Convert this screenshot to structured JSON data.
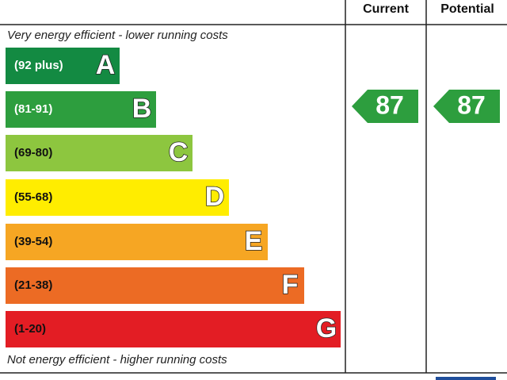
{
  "header": {
    "current": "Current",
    "potential": "Potential"
  },
  "top_note": "Very energy efficient - lower running costs",
  "bottom_note": "Not energy efficient - higher running costs",
  "bands": [
    {
      "range": "(92 plus)",
      "letter": "A",
      "color": "#138a42"
    },
    {
      "range": "(81-91)",
      "letter": "B",
      "color": "#2d9e3e"
    },
    {
      "range": "(69-80)",
      "letter": "C",
      "color": "#8dc63f"
    },
    {
      "range": "(55-68)",
      "letter": "D",
      "color": "#ffed00"
    },
    {
      "range": "(39-54)",
      "letter": "E",
      "color": "#f6a623"
    },
    {
      "range": "(21-38)",
      "letter": "F",
      "color": "#ec6b24"
    },
    {
      "range": "(1-20)",
      "letter": "G",
      "color": "#e31d24"
    }
  ],
  "current": {
    "value": 87,
    "color": "#2d9e3e"
  },
  "potential": {
    "value": 87,
    "color": "#2d9e3e"
  }
}
